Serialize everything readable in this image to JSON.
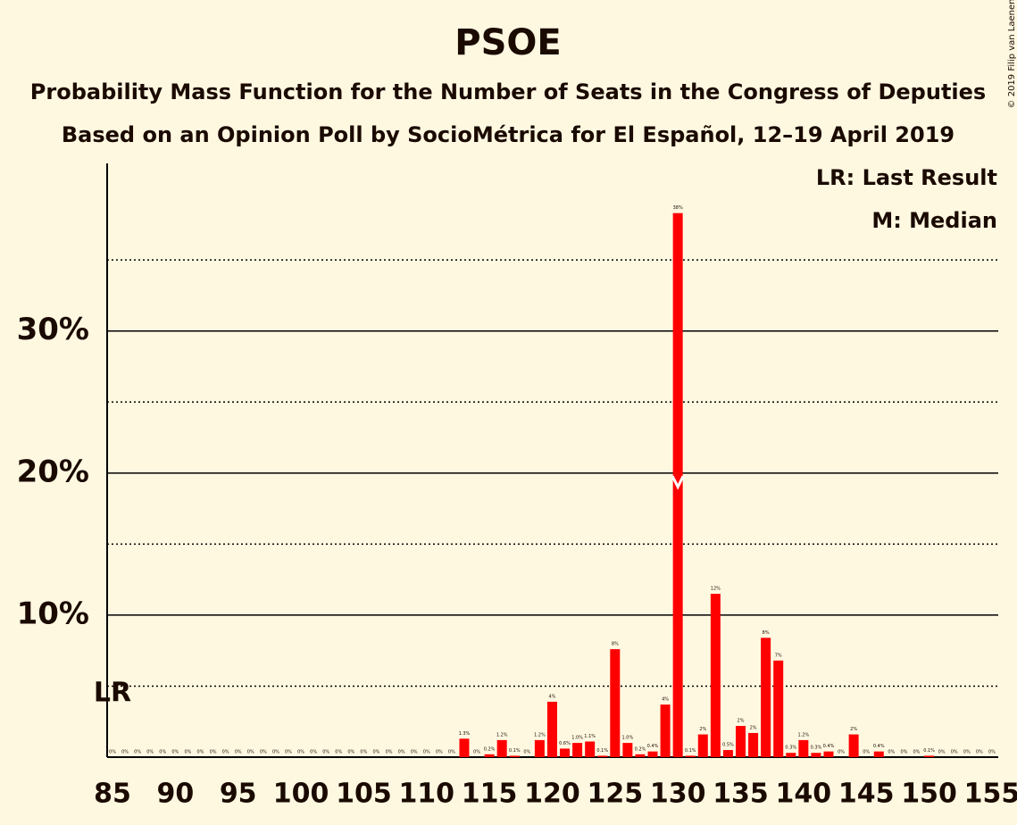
{
  "chart_data": {
    "type": "bar",
    "title": "PSOE",
    "subtitle": "Probability Mass Function for the Number of Seats in the Congress of Deputies",
    "subtitle2": "Based on an Opinion Poll by SocioMétrica for El Español, 12–19 April 2019",
    "copyright": "© 2019 Filip van Laenen",
    "legend": [
      "LR: Last Result",
      "M: Median"
    ],
    "last_result": 85,
    "last_result_label": "LR",
    "median": 130,
    "color": "#ff0000",
    "categories": [
      85,
      86,
      87,
      88,
      89,
      90,
      91,
      92,
      93,
      94,
      95,
      96,
      97,
      98,
      99,
      100,
      101,
      102,
      103,
      104,
      105,
      106,
      107,
      108,
      109,
      110,
      111,
      112,
      113,
      114,
      115,
      116,
      117,
      118,
      119,
      120,
      121,
      122,
      123,
      124,
      125,
      126,
      127,
      128,
      129,
      130,
      131,
      132,
      133,
      134,
      135,
      136,
      137,
      138,
      139,
      140,
      141,
      142,
      143,
      144,
      145,
      146,
      147,
      148,
      149,
      150,
      151,
      152,
      153,
      154,
      155
    ],
    "values": [
      0,
      0,
      0,
      0,
      0,
      0,
      0,
      0,
      0,
      0,
      0,
      0,
      0,
      0,
      0,
      0,
      0,
      0,
      0,
      0,
      0,
      0,
      0,
      0,
      0,
      0,
      0,
      0,
      1.3,
      0,
      0.2,
      1.2,
      0.1,
      0,
      1.2,
      3.9,
      0.6,
      1.0,
      1.1,
      0.1,
      7.6,
      1.0,
      0.2,
      0.4,
      3.7,
      38.3,
      0.1,
      1.6,
      11.5,
      0.5,
      2.2,
      1.7,
      8.4,
      6.8,
      0.3,
      1.2,
      0.3,
      0.4,
      0,
      1.6,
      0,
      0.4,
      0,
      0,
      0,
      0.1,
      0,
      0,
      0,
      0,
      0
    ],
    "value_labels": [
      "0%",
      "0%",
      "0%",
      "0%",
      "0%",
      "0%",
      "0%",
      "0%",
      "0%",
      "0%",
      "0%",
      "0%",
      "0%",
      "0%",
      "0%",
      "0%",
      "0%",
      "0%",
      "0%",
      "0%",
      "0%",
      "0%",
      "0%",
      "0%",
      "0%",
      "0%",
      "0%",
      "0%",
      "1.3%",
      "0%",
      "0.2%",
      "1.2%",
      "0.1%",
      "0%",
      "1.2%",
      "4%",
      "0.6%",
      "1.0%",
      "1.1%",
      "0.1%",
      "8%",
      "1.0%",
      "0.2%",
      "0.4%",
      "4%",
      "38%",
      "0.1%",
      "2%",
      "12%",
      "0.5%",
      "2%",
      "2%",
      "8%",
      "7%",
      "0.3%",
      "1.2%",
      "0.3%",
      "0.4%",
      "0%",
      "2%",
      "0%",
      "0.4%",
      "0%",
      "0%",
      "0%",
      "0.1%",
      "0%",
      "0%",
      "0%",
      "0%",
      "0%"
    ],
    "xticks": [
      85,
      90,
      95,
      100,
      105,
      110,
      115,
      120,
      125,
      130,
      135,
      140,
      145,
      150,
      155
    ],
    "ylim": [
      0,
      41.8
    ],
    "yticks": [
      {
        "value": 10,
        "label": "10%"
      },
      {
        "value": 20,
        "label": "20%"
      },
      {
        "value": 30,
        "label": "30%"
      }
    ],
    "minor_yticks": [
      5,
      15,
      25,
      35
    ]
  }
}
